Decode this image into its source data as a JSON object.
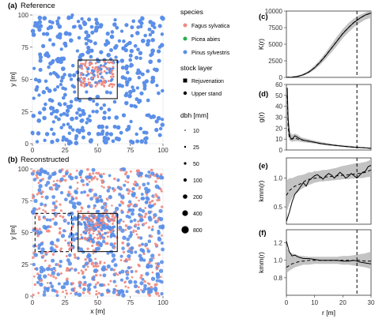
{
  "panels": {
    "a": {
      "tag": "(a)",
      "title": "Reference"
    },
    "b": {
      "tag": "(b)",
      "title": "Reconstructed"
    },
    "c": {
      "tag": "(c)"
    },
    "d": {
      "tag": "(d)"
    },
    "e": {
      "tag": "(e)"
    },
    "f": {
      "tag": "(f)"
    }
  },
  "colors": {
    "fagus": "#f08a80",
    "picea": "#22b14c",
    "pinus": "#5b8fe8",
    "envelope": "#b8b8b8",
    "frame": "#333333"
  },
  "legend": {
    "species_title": "species",
    "species": [
      {
        "label": "Fagus sylvatica",
        "color": "#f08a80"
      },
      {
        "label": "Picea abies",
        "color": "#22b14c"
      },
      {
        "label": "Pinus sylvestris",
        "color": "#5b8fe8"
      }
    ],
    "stock_title": "stock layer",
    "stock": [
      {
        "label": "Rejuvenation",
        "symbol": "square"
      },
      {
        "label": "Upper stand",
        "symbol": "circle"
      }
    ],
    "dbh_title": "dbh [mm]",
    "dbh": [
      "10",
      "25",
      "50",
      "100",
      "200",
      "400",
      "800"
    ]
  },
  "chart_data": [
    {
      "panel": "a",
      "type": "scatter",
      "xlabel": "",
      "ylabel": "y [m]",
      "xlim": [
        0,
        100
      ],
      "ylim": [
        0,
        100
      ],
      "xticks": [
        "0",
        "25",
        "50",
        "75",
        "100"
      ],
      "yticks": [
        "0",
        "25",
        "50",
        "75",
        "100"
      ],
      "series": [
        {
          "name": "Pinus sylvestris",
          "description": "dispersed upper stand trees across the plot"
        },
        {
          "name": "Fagus sylvatica",
          "description": "rejuvenation cluster inside box"
        }
      ],
      "boxes": [
        {
          "x": [
            35,
            65
          ],
          "y": [
            35,
            65
          ],
          "style": "solid"
        }
      ]
    },
    {
      "panel": "b",
      "type": "scatter",
      "xlabel": "x [m]",
      "ylabel": "y [m]",
      "xlim": [
        0,
        100
      ],
      "ylim": [
        0,
        100
      ],
      "xticks": [
        "0",
        "25",
        "50",
        "75",
        "100"
      ],
      "yticks": [
        "0",
        "25",
        "50",
        "75",
        "100"
      ],
      "series": [
        {
          "name": "Pinus sylvestris"
        },
        {
          "name": "Fagus sylvatica"
        }
      ],
      "boxes": [
        {
          "x": [
            35,
            65
          ],
          "y": [
            35,
            65
          ],
          "style": "solid"
        },
        {
          "x": [
            2,
            30
          ],
          "y": [
            35,
            65
          ],
          "style": "dashed"
        }
      ]
    },
    {
      "panel": "c",
      "type": "line",
      "ylabel": "K(r)",
      "xlim": [
        0,
        30
      ],
      "ylim": [
        0,
        10000
      ],
      "yticks": [
        "0",
        "2500",
        "5000",
        "7500",
        "10000"
      ],
      "vline": 25,
      "x": [
        0,
        2,
        4,
        6,
        8,
        10,
        12,
        14,
        16,
        18,
        20,
        22,
        24,
        26,
        28,
        30
      ],
      "reference": [
        0,
        40,
        150,
        380,
        800,
        1450,
        2300,
        3300,
        4400,
        5500,
        6600,
        7500,
        8300,
        8900,
        9400,
        9700
      ],
      "reconstructed": [
        0,
        45,
        160,
        400,
        820,
        1480,
        2350,
        3330,
        4430,
        5520,
        6620,
        7520,
        8320,
        8920,
        9420,
        9720
      ],
      "envelope_low": [
        0,
        20,
        100,
        280,
        620,
        1150,
        1900,
        2800,
        3800,
        4800,
        5900,
        6800,
        7600,
        8200,
        8700,
        9000
      ],
      "envelope_high": [
        0,
        80,
        250,
        560,
        1050,
        1800,
        2700,
        3800,
        5000,
        6200,
        7300,
        8200,
        8900,
        9400,
        9800,
        10000
      ]
    },
    {
      "panel": "d",
      "type": "line",
      "ylabel": "g(r)",
      "xlim": [
        0,
        30
      ],
      "ylim": [
        0,
        60
      ],
      "yticks": [
        "0",
        "10",
        "20",
        "30",
        "40",
        "50",
        "60"
      ],
      "vline": 25,
      "x": [
        0.3,
        0.6,
        1,
        1.5,
        2,
        3,
        4,
        5,
        6,
        8,
        10,
        12,
        15,
        18,
        20,
        24,
        28,
        30
      ],
      "reference": [
        57,
        30,
        15,
        11,
        10,
        13,
        11.5,
        10,
        9,
        8,
        7,
        6,
        5,
        4,
        3.5,
        2.5,
        2,
        1.5
      ],
      "reconstructed": [
        50,
        22,
        12,
        10,
        10,
        11,
        10,
        9.5,
        9,
        8,
        7,
        6,
        5,
        4,
        3.5,
        2.5,
        2,
        1.5
      ],
      "envelope_low": [
        30,
        14,
        9,
        8,
        7.5,
        8,
        8,
        7.5,
        7,
        6.5,
        6,
        5,
        4,
        3.5,
        3,
        2,
        1.5,
        1
      ],
      "envelope_high": [
        60,
        40,
        22,
        16,
        14,
        15,
        14,
        12,
        11,
        10,
        8.5,
        7.5,
        6,
        5,
        4.5,
        3.5,
        2.5,
        2
      ]
    },
    {
      "panel": "e",
      "type": "line",
      "ylabel": "kmm(r)",
      "xlim": [
        0,
        30
      ],
      "ylim": [
        0.2,
        1.35
      ],
      "yticks": [
        "0.5",
        "1.0"
      ],
      "vline": 25,
      "x": [
        0,
        1,
        2,
        3,
        4,
        5,
        6,
        7,
        8,
        9,
        10,
        11,
        12,
        13,
        14,
        15,
        16,
        17,
        18,
        19,
        20,
        21,
        22,
        23,
        24,
        25,
        26,
        27,
        28,
        29,
        30
      ],
      "reference": [
        0.25,
        0.4,
        0.58,
        0.72,
        0.78,
        0.85,
        0.92,
        0.86,
        0.96,
        1.0,
        1.04,
        1.06,
        1.02,
        0.98,
        1.04,
        1.08,
        1.05,
        1.0,
        1.05,
        1.1,
        1.06,
        1.0,
        1.03,
        1.08,
        1.04,
        1.0,
        1.05,
        1.1,
        1.12,
        1.2,
        1.22
      ],
      "reconstructed": [
        0.7,
        0.78,
        0.82,
        0.86,
        0.88,
        0.9,
        0.93,
        0.96,
        0.98,
        0.98,
        1.0,
        1.0,
        1.01,
        1.01,
        1.02,
        1.02,
        1.03,
        1.03,
        1.04,
        1.04,
        1.05,
        1.05,
        1.06,
        1.06,
        1.07,
        1.08,
        1.08,
        1.09,
        1.1,
        1.12,
        1.14
      ],
      "envelope_low": [
        0.4,
        0.55,
        0.65,
        0.72,
        0.75,
        0.8,
        0.83,
        0.86,
        0.88,
        0.9,
        0.92,
        0.93,
        0.94,
        0.94,
        0.95,
        0.95,
        0.96,
        0.96,
        0.97,
        0.97,
        0.98,
        0.98,
        0.98,
        0.99,
        0.99,
        1.0,
        1.0,
        1.0,
        1.01,
        1.02,
        1.02
      ],
      "envelope_high": [
        0.95,
        1.0,
        1.0,
        1.02,
        1.04,
        1.05,
        1.06,
        1.08,
        1.1,
        1.1,
        1.12,
        1.12,
        1.13,
        1.14,
        1.14,
        1.15,
        1.16,
        1.17,
        1.18,
        1.2,
        1.21,
        1.22,
        1.23,
        1.24,
        1.25,
        1.26,
        1.26,
        1.27,
        1.28,
        1.3,
        1.32
      ]
    },
    {
      "panel": "f",
      "type": "line",
      "ylabel": "kmm(r)",
      "xlabel": "r [m]",
      "xlim": [
        0,
        30
      ],
      "ylim": [
        0.6,
        1.35
      ],
      "yticks": [
        "0.8",
        "1.0",
        "1.2"
      ],
      "xticks": [
        "0",
        "10",
        "20",
        "30"
      ],
      "vline": 25,
      "x": [
        0,
        1,
        2,
        3,
        4,
        5,
        6,
        8,
        10,
        12,
        14,
        16,
        18,
        20,
        22,
        24,
        26,
        28,
        30
      ],
      "reference": [
        1.22,
        1.1,
        1.05,
        1.06,
        1.04,
        1.03,
        1.02,
        1.02,
        1.01,
        1.0,
        1.0,
        1.0,
        1.0,
        0.99,
        0.99,
        1.0,
        0.98,
        0.97,
        0.96
      ],
      "reconstructed": [
        0.92,
        0.94,
        0.96,
        0.97,
        0.98,
        0.99,
        0.99,
        1.0,
        1.0,
        1.0,
        1.0,
        1.0,
        1.0,
        1.0,
        1.0,
        1.0,
        1.0,
        0.99,
        0.99
      ],
      "envelope_low": [
        0.85,
        0.88,
        0.9,
        0.92,
        0.93,
        0.94,
        0.95,
        0.95,
        0.96,
        0.96,
        0.96,
        0.96,
        0.96,
        0.95,
        0.95,
        0.94,
        0.93,
        0.92,
        0.9
      ],
      "envelope_high": [
        1.15,
        1.1,
        1.08,
        1.07,
        1.06,
        1.05,
        1.05,
        1.04,
        1.04,
        1.04,
        1.04,
        1.04,
        1.04,
        1.05,
        1.05,
        1.06,
        1.07,
        1.08,
        1.1
      ]
    }
  ]
}
